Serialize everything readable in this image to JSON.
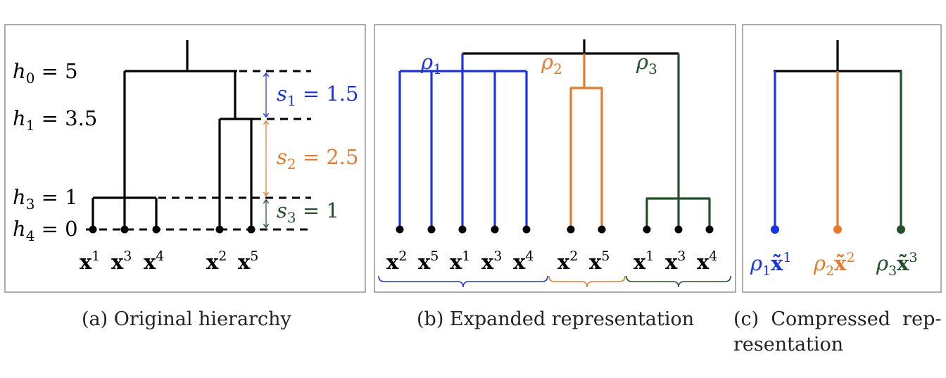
{
  "panels": {
    "a": {
      "caption": "(a) Original hierarchy",
      "heights": [
        {
          "name": "h",
          "sub": "0",
          "eq": " = 5"
        },
        {
          "name": "h",
          "sub": "1",
          "eq": " = 3.5"
        },
        {
          "name": "h",
          "sub": "3",
          "eq": " = 1"
        },
        {
          "name": "h",
          "sub": "4",
          "eq": " = 0"
        }
      ],
      "scales": [
        {
          "name": "s",
          "sub": "1",
          "eq": " = 1.5",
          "color": "#1a33e6"
        },
        {
          "name": "s",
          "sub": "2",
          "eq": " = 2.5",
          "color": "#e87a2c"
        },
        {
          "name": "s",
          "sub": "3",
          "eq": " = 1",
          "color": "#22502a"
        }
      ],
      "leaves": [
        {
          "base": "x",
          "sup": "1"
        },
        {
          "base": "x",
          "sup": "3"
        },
        {
          "base": "x",
          "sup": "4"
        },
        {
          "base": "x",
          "sup": "2"
        },
        {
          "base": "x",
          "sup": "5"
        }
      ]
    },
    "b": {
      "caption": "(b) Expanded representation",
      "rhos": [
        {
          "name": "ρ",
          "sub": "1",
          "color": "#1a33e6"
        },
        {
          "name": "ρ",
          "sub": "2",
          "color": "#e87a2c"
        },
        {
          "name": "ρ",
          "sub": "3",
          "color": "#22502a"
        }
      ],
      "leaves": [
        {
          "base": "x",
          "sup": "2"
        },
        {
          "base": "x",
          "sup": "5"
        },
        {
          "base": "x",
          "sup": "1"
        },
        {
          "base": "x",
          "sup": "3"
        },
        {
          "base": "x",
          "sup": "4"
        },
        {
          "base": "x",
          "sup": "2"
        },
        {
          "base": "x",
          "sup": "5"
        },
        {
          "base": "x",
          "sup": "1"
        },
        {
          "base": "x",
          "sup": "3"
        },
        {
          "base": "x",
          "sup": "4"
        }
      ]
    },
    "c": {
      "caption_line1": "(c)  Compressed  rep-",
      "caption_line2": "resentation",
      "leaves": [
        {
          "rho": "ρ",
          "sub": "1",
          "base": "x̃",
          "sup": "1",
          "color": "#1a33e6"
        },
        {
          "rho": "ρ",
          "sub": "2",
          "base": "x̃",
          "sup": "2",
          "color": "#e87a2c"
        },
        {
          "rho": "ρ",
          "sub": "3",
          "base": "x̃",
          "sup": "3",
          "color": "#22502a"
        }
      ]
    }
  }
}
